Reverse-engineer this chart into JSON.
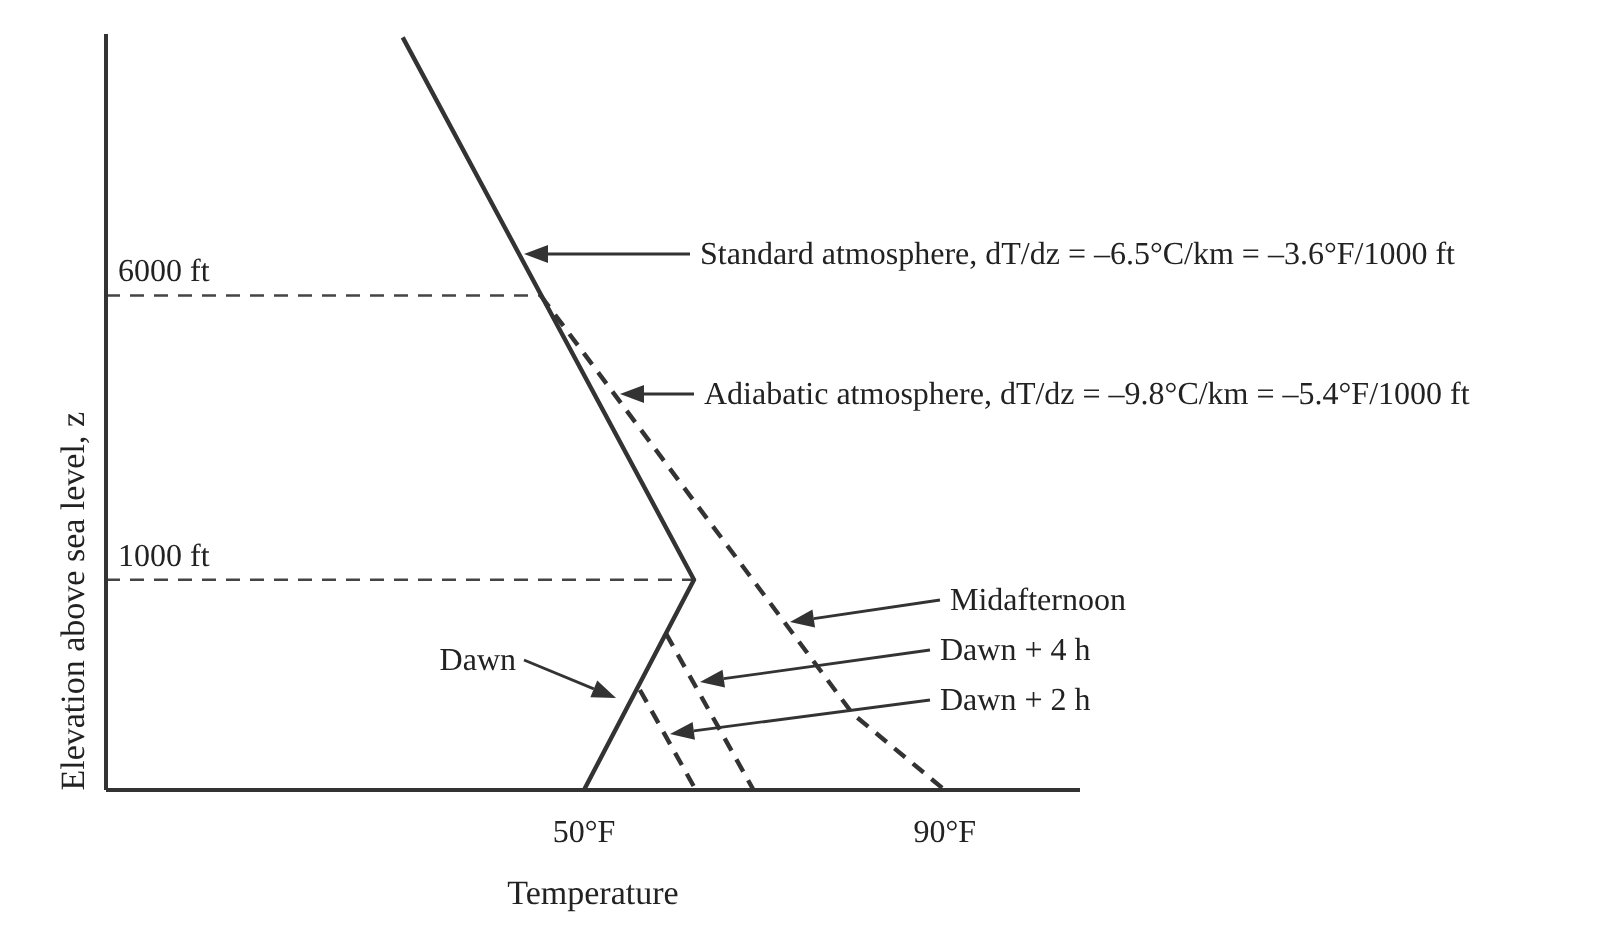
{
  "chart_data": {
    "type": "line",
    "xlabel": "Temperature",
    "ylabel": "Elevation above sea level, z",
    "xlim": [
      -3,
      105
    ],
    "ylim": [
      -2700,
      10600
    ],
    "xticks": [
      {
        "value": 50,
        "label": "50°F"
      },
      {
        "value": 90,
        "label": "90°F"
      }
    ],
    "yticks": [
      {
        "value": 1000,
        "label": "1000 ft"
      },
      {
        "value": 6000,
        "label": "6000 ft"
      }
    ],
    "marker": "none",
    "legend": false,
    "grid": false,
    "series": [
      {
        "color": "#333333",
        "line_style": "solid",
        "x": [
          29.9,
          62.2,
          50
        ],
        "values": [
          10540,
          1000,
          -2700
        ]
      },
      {
        "color": "#333333",
        "line_style": "dashed",
        "x": [
          45.2,
          79.8,
          90
        ],
        "values": [
          6000,
          -1360,
          -2700
        ]
      },
      {
        "color": "#333333",
        "line_style": "dashed",
        "x": [
          59.1,
          68.8
        ],
        "values": [
          50,
          -2700
        ]
      },
      {
        "color": "#333333",
        "line_style": "dashed",
        "x": [
          56.2,
          62.4
        ],
        "values": [
          -940,
          -2700
        ]
      }
    ],
    "ref_lines": [
      {
        "axis": "y",
        "value": 1000,
        "color": "#444444",
        "line_style": "dashed"
      },
      {
        "axis": "y",
        "value": 6000,
        "color": "#444444",
        "line_style": "dashed"
      }
    ],
    "annotations": [
      "Standard atmosphere, dT/dz = –6.5°C/km = –3.6°F/1000 ft",
      "Adiabatic atmosphere, dT/dz = –9.8°C/km = –5.4°F/1000 ft",
      "Midafternoon",
      "Dawn + 4 h",
      "Dawn + 2 h",
      "Dawn"
    ]
  }
}
